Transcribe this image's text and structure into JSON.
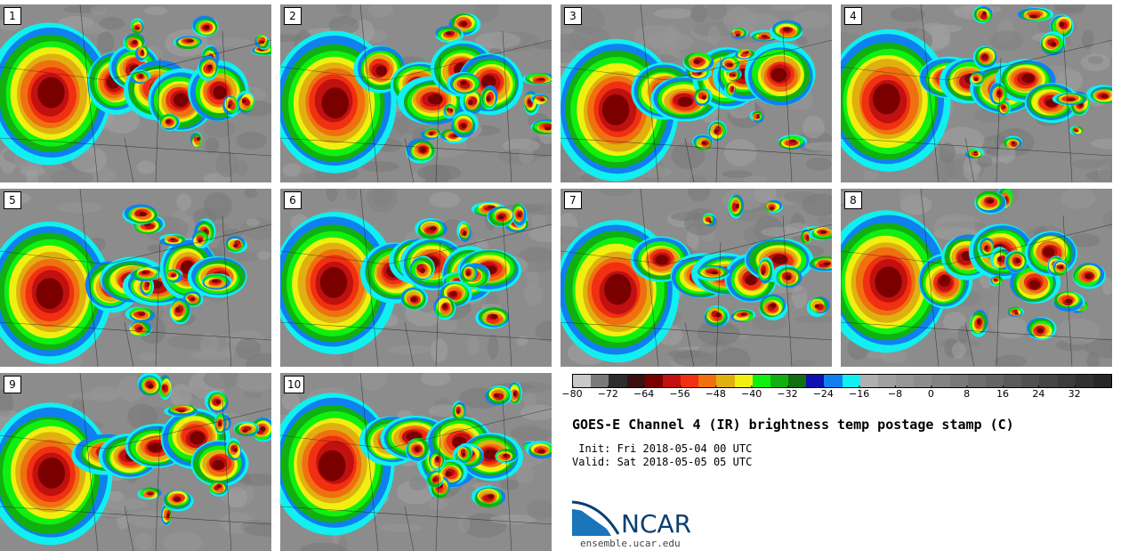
{
  "panels": [
    {
      "label": "1"
    },
    {
      "label": "2"
    },
    {
      "label": "3"
    },
    {
      "label": "4"
    },
    {
      "label": "5"
    },
    {
      "label": "6"
    },
    {
      "label": "7"
    },
    {
      "label": "8"
    },
    {
      "label": "9"
    },
    {
      "label": "10"
    }
  ],
  "colorbar": {
    "range": [
      -80,
      40
    ],
    "step": 4,
    "tick_labels": [
      "−80",
      "−72",
      "−64",
      "−56",
      "−48",
      "−40",
      "−32",
      "−24",
      "−16",
      "−8",
      "0",
      "8",
      "16",
      "24",
      "32"
    ],
    "colors": [
      "#c8c8c8",
      "#7a7a7a",
      "#2d2d2d",
      "#3a1010",
      "#7a0000",
      "#c01010",
      "#f03010",
      "#f07010",
      "#e0b010",
      "#f0f010",
      "#10f010",
      "#10b010",
      "#107010",
      "#1010b0",
      "#1080f0",
      "#10f0f0",
      "#b0b0b0",
      "#a0a0a0",
      "#969696",
      "#8c8c8c",
      "#828282",
      "#787878",
      "#6e6e6e",
      "#646464",
      "#5a5a5a",
      "#505050",
      "#464646",
      "#3c3c3c",
      "#323232",
      "#282828"
    ]
  },
  "title": "GOES-E Channel 4 (IR) brightness temp postage stamp (C)",
  "init_text": " Init: Fri 2018-05-04 00 UTC",
  "valid_text": "Valid: Sat 2018-05-05 05 UTC",
  "logo_text": "NCAR",
  "url_text": "ensemble.ucar.edu"
}
